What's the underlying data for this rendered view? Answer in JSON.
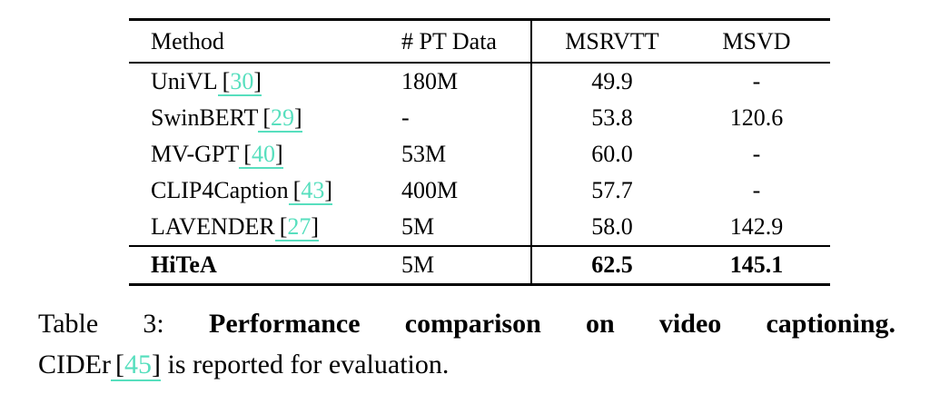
{
  "colors": {
    "link": "#57dfbe"
  },
  "punct": {
    "open_bracket": "[",
    "close_bracket": "]"
  },
  "table": {
    "columns": [
      "Method",
      "# PT Data",
      "MSRVTT",
      "MSVD"
    ],
    "rows": [
      {
        "method": "UniVL",
        "cite_num": "30",
        "pt": "180M",
        "msrvtt": "49.9",
        "msvd": "-"
      },
      {
        "method": "SwinBERT",
        "cite_num": "29",
        "pt": "-",
        "msrvtt": "53.8",
        "msvd": "120.6"
      },
      {
        "method": "MV-GPT",
        "cite_num": "40",
        "pt": "53M",
        "msrvtt": "60.0",
        "msvd": "-"
      },
      {
        "method": "CLIP4Caption",
        "cite_num": "43",
        "pt": "400M",
        "msrvtt": "57.7",
        "msvd": "-"
      },
      {
        "method": "LAVENDER",
        "cite_num": "27",
        "pt": "5M",
        "msrvtt": "58.0",
        "msvd": "142.9"
      }
    ],
    "highlight_row": {
      "method": "HiTeA",
      "pt": "5M",
      "msrvtt": "62.5",
      "msvd": "145.1"
    }
  },
  "caption": {
    "label": "Table 3:",
    "title": "Performance comparison on video captioning.",
    "line2_pre": "CIDEr",
    "cite_num": "45",
    "line2_post": " is reported for evaluation."
  }
}
